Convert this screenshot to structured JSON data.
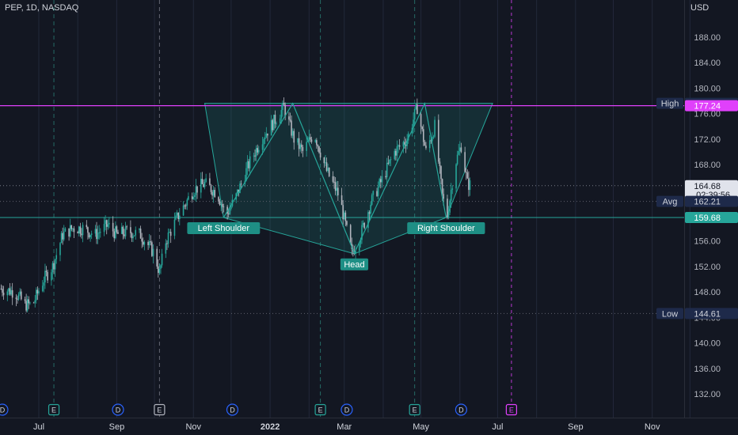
{
  "header": {
    "symbol_line": "PEP, 1D, NASDAQ",
    "currency": "USD"
  },
  "colors": {
    "background": "#131722",
    "up": "#26a69a",
    "down": "#b2b5be",
    "magenta": "#e040fb",
    "green_line": "#26a69a",
    "label_bg": "#1e2a4a"
  },
  "chart_data": {
    "type": "candlestick",
    "title": "",
    "y_axis": {
      "min": 129,
      "max": 194,
      "ticks": [
        "188.00",
        "184.00",
        "180.00",
        "176.00",
        "172.00",
        "168.00",
        "164.00",
        "160.00",
        "156.00",
        "152.00",
        "148.00",
        "144.00",
        "140.00",
        "136.00",
        "132.00"
      ]
    },
    "x_axis": {
      "ticks": [
        "Jul",
        "Sep",
        "Nov",
        "2022",
        "Mar",
        "May",
        "Jul",
        "Sep",
        "Nov"
      ]
    },
    "price_path": [
      {
        "date": "2021-06-01",
        "value": 148.5
      },
      {
        "date": "2021-06-12",
        "value": 148
      },
      {
        "date": "2021-06-20",
        "value": 146
      },
      {
        "date": "2021-06-26",
        "value": 146
      },
      {
        "date": "2021-07-05",
        "value": 150
      },
      {
        "date": "2021-07-12",
        "value": 152
      },
      {
        "date": "2021-07-20",
        "value": 157
      },
      {
        "date": "2021-07-28",
        "value": 158
      },
      {
        "date": "2021-08-05",
        "value": 158
      },
      {
        "date": "2021-08-15",
        "value": 157
      },
      {
        "date": "2021-08-25",
        "value": 158.5
      },
      {
        "date": "2021-09-01",
        "value": 157
      },
      {
        "date": "2021-09-10",
        "value": 157.5
      },
      {
        "date": "2021-09-20",
        "value": 157
      },
      {
        "date": "2021-10-01",
        "value": 154
      },
      {
        "date": "2021-10-05",
        "value": 151
      },
      {
        "date": "2021-10-10",
        "value": 156
      },
      {
        "date": "2021-10-20",
        "value": 160
      },
      {
        "date": "2021-11-01",
        "value": 164
      },
      {
        "date": "2021-11-10",
        "value": 165
      },
      {
        "date": "2021-11-20",
        "value": 163.5
      },
      {
        "date": "2021-11-27",
        "value": 160
      },
      {
        "date": "2021-12-05",
        "value": 163
      },
      {
        "date": "2021-12-15",
        "value": 168
      },
      {
        "date": "2021-12-25",
        "value": 172
      },
      {
        "date": "2022-01-05",
        "value": 175
      },
      {
        "date": "2022-01-12",
        "value": 177
      },
      {
        "date": "2022-01-20",
        "value": 172
      },
      {
        "date": "2022-01-27",
        "value": 170
      },
      {
        "date": "2022-02-05",
        "value": 173
      },
      {
        "date": "2022-02-15",
        "value": 167
      },
      {
        "date": "2022-02-25",
        "value": 163
      },
      {
        "date": "2022-03-07",
        "value": 154
      },
      {
        "date": "2022-03-14",
        "value": 157
      },
      {
        "date": "2022-03-22",
        "value": 162
      },
      {
        "date": "2022-04-01",
        "value": 166
      },
      {
        "date": "2022-04-10",
        "value": 170
      },
      {
        "date": "2022-04-20",
        "value": 172
      },
      {
        "date": "2022-04-28",
        "value": 177
      },
      {
        "date": "2022-05-05",
        "value": 170
      },
      {
        "date": "2022-05-12",
        "value": 174
      },
      {
        "date": "2022-05-18",
        "value": 163
      },
      {
        "date": "2022-05-22",
        "value": 160
      },
      {
        "date": "2022-05-28",
        "value": 168
      },
      {
        "date": "2022-06-02",
        "value": 171
      },
      {
        "date": "2022-06-07",
        "value": 165
      },
      {
        "date": "2022-06-10",
        "value": 164.7
      }
    ],
    "pattern": {
      "fill_polygon": [
        {
          "date": "2021-11-10",
          "value": 177.62
        },
        {
          "date": "2022-06-27",
          "value": 177.62
        },
        {
          "date": "2022-05-21",
          "value": 159.68
        },
        {
          "date": "2022-03-09",
          "value": 154
        },
        {
          "date": "2021-11-25",
          "value": 159.68
        }
      ],
      "zigzag": [
        {
          "date": "2021-11-25",
          "value": 159.7
        },
        {
          "date": "2022-01-19",
          "value": 177.6
        },
        {
          "date": "2022-03-09",
          "value": 154.1
        },
        {
          "date": "2022-05-04",
          "value": 177.6
        },
        {
          "date": "2022-05-21",
          "value": 159.7
        }
      ],
      "labels": [
        {
          "text": "Left Shoulder",
          "date": "2021-11-25",
          "value": 159.68
        },
        {
          "text": "Head",
          "date": "2022-03-09",
          "value": 154
        },
        {
          "text": "Right Shoulder",
          "date": "2022-05-21",
          "value": 159.68
        }
      ]
    },
    "lines": {
      "high": 177.62,
      "high_text": "177.62",
      "high_label": "High",
      "magenta": 177.24,
      "magenta_text": "177.24",
      "neckline": 159.68,
      "neckline_text": "159.68",
      "current": 164.68,
      "current_text": "164.68",
      "countdown": "02:39:56",
      "avg": 162.21,
      "avg_text": "162.21",
      "avg_label": "Avg",
      "low": 144.61,
      "low_text": "144.61",
      "low_label": "Low"
    },
    "event_markers": [
      {
        "date": "2021-06-02",
        "letter": "D",
        "kind": "dividend"
      },
      {
        "date": "2021-07-13",
        "letter": "E",
        "kind": "earnings"
      },
      {
        "date": "2021-09-02",
        "letter": "D",
        "kind": "dividend"
      },
      {
        "date": "2021-10-05",
        "letter": "E",
        "kind": "earnings-selected"
      },
      {
        "date": "2021-12-02",
        "letter": "D",
        "kind": "dividend"
      },
      {
        "date": "2022-02-10",
        "letter": "E",
        "kind": "earnings"
      },
      {
        "date": "2022-03-03",
        "letter": "D",
        "kind": "dividend"
      },
      {
        "date": "2022-04-26",
        "letter": "E",
        "kind": "earnings"
      },
      {
        "date": "2022-06-02",
        "letter": "D",
        "kind": "dividend"
      },
      {
        "date": "2022-07-12",
        "letter": "E",
        "kind": "earnings-upcoming"
      }
    ],
    "event_vlines": [
      {
        "date": "2021-07-13",
        "style": "earnings"
      },
      {
        "date": "2021-10-05",
        "style": "earnings"
      },
      {
        "date": "2022-02-10",
        "style": "earnings"
      },
      {
        "date": "2022-04-26",
        "style": "earnings"
      },
      {
        "date": "2022-07-12",
        "style": "upcoming"
      }
    ]
  }
}
